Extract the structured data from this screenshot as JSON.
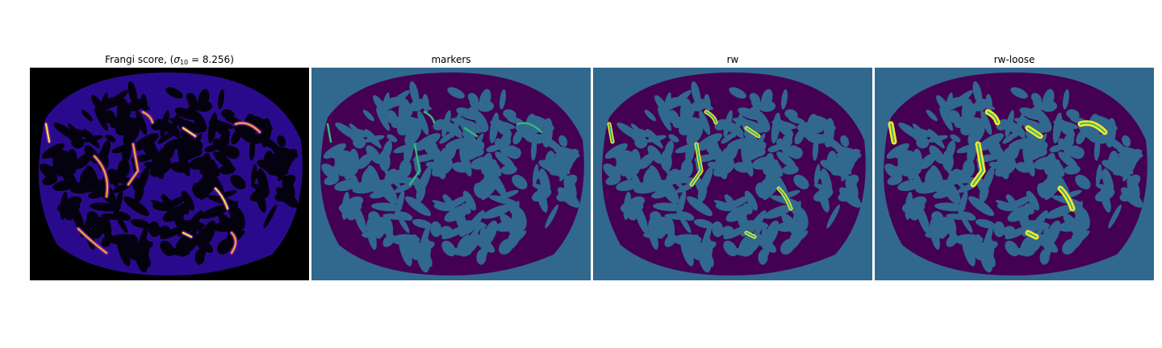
{
  "figure": {
    "panels": [
      {
        "id": "frangi",
        "title_prefix": "Frangi score, (",
        "title_symbol": "σ",
        "title_sub": "10",
        "title_suffix": " = 8.256)",
        "colormap": "inferno"
      },
      {
        "id": "markers",
        "title": "markers",
        "colormap": "viridis"
      },
      {
        "id": "rw",
        "title": "rw",
        "colormap": "viridis"
      },
      {
        "id": "rw-loose",
        "title": "rw-loose",
        "colormap": "viridis"
      }
    ],
    "colors": {
      "frangi_bg": "#000000",
      "frangi_tissue": "#2a0a8c",
      "frangi_mid": "#7a1fa0",
      "frangi_hot": "#f6a32c",
      "frangi_peak": "#f7e14a",
      "label_bg": "#31688e",
      "label_tissue": "#440154",
      "label_marker": "#35b779",
      "label_highlight": "#fde725"
    }
  }
}
